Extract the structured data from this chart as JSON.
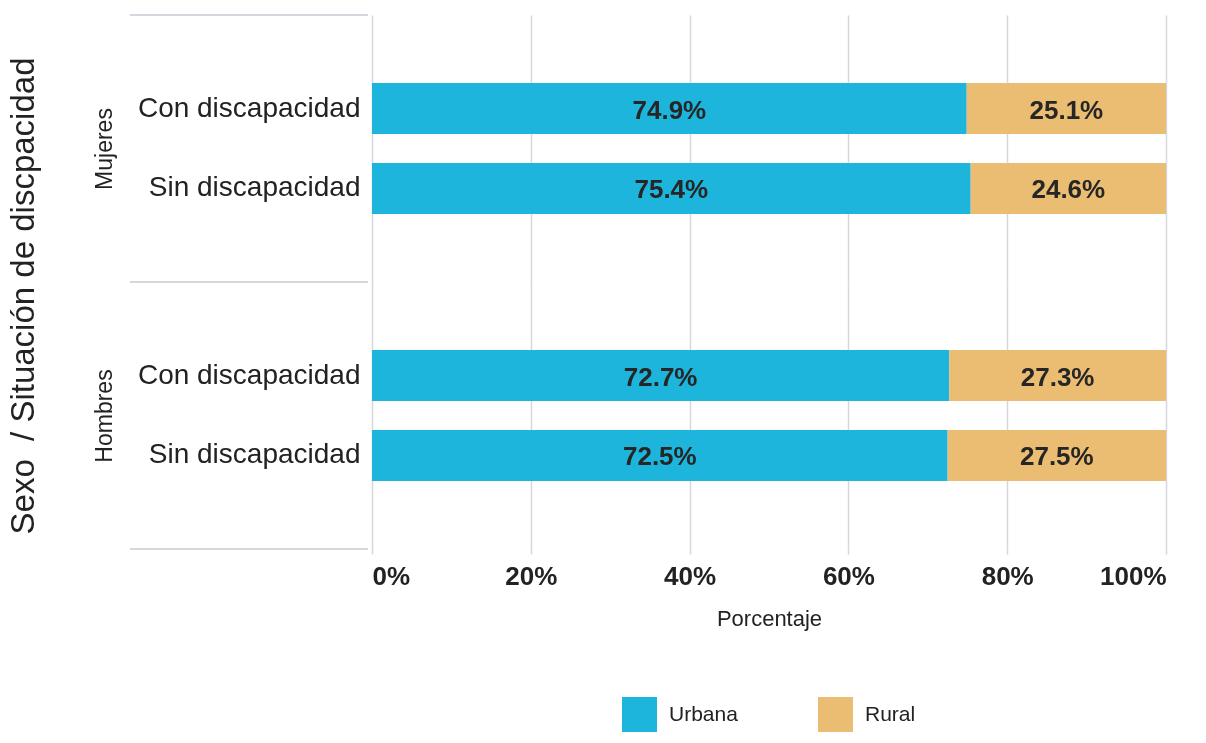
{
  "chart_data": {
    "type": "bar",
    "orientation": "horizontal",
    "stacked": true,
    "ylabel": "Sexo  / Situación de discpacidad",
    "xlabel": "Porcentaje",
    "annotations": [
      "Mujeres",
      "Hombres"
    ],
    "categories": [
      "Con discapacidad",
      "Sin discapacidad",
      "Con discapacidad",
      "Sin discapacidad"
    ],
    "series": [
      {
        "name": "Urbana",
        "color": "#1db5dc",
        "values": [
          74.9,
          75.4,
          72.7,
          72.5
        ],
        "value_labels": [
          "74.9%",
          "75.4%",
          "72.7%",
          "72.5%"
        ]
      },
      {
        "name": "Rural",
        "color": "#ebbd72",
        "values": [
          25.1,
          24.6,
          27.3,
          27.5
        ],
        "value_labels": [
          "25.1%",
          "24.6%",
          "27.3%",
          "27.5%"
        ]
      }
    ],
    "xlim": [
      0,
      100
    ],
    "xticks": [
      {
        "value": 0,
        "label": "0%"
      },
      {
        "value": 20,
        "label": "20%"
      },
      {
        "value": 40,
        "label": "40%"
      },
      {
        "value": 60,
        "label": "60%"
      },
      {
        "value": 80,
        "label": "80%"
      },
      {
        "value": 100,
        "label": "100%"
      }
    ],
    "grid": "x",
    "legend": "bottom"
  }
}
